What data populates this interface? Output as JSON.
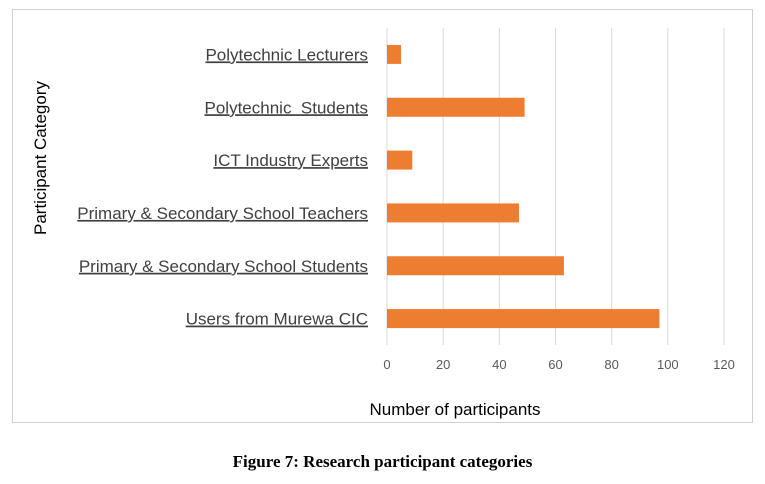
{
  "chart_data": {
    "type": "bar",
    "orientation": "horizontal",
    "categories": [
      "Polytechnic Lecturers",
      "Polytechnic  Students",
      "ICT Industry Experts",
      "Primary & Secondary School Teachers",
      "Primary & Secondary School Students",
      "Users from Murewa CIC"
    ],
    "values": [
      5,
      49,
      9,
      47,
      63,
      97
    ],
    "xlabel": "Number of participants",
    "ylabel": "Participant Category",
    "xlim": [
      0,
      120
    ],
    "xticks": [
      "0",
      "20",
      "40",
      "60",
      "80",
      "100",
      "120"
    ],
    "bar_color": "#ED7D31",
    "grid": "vertical",
    "legend": "none"
  },
  "caption": "Figure 7: Research participant categories"
}
